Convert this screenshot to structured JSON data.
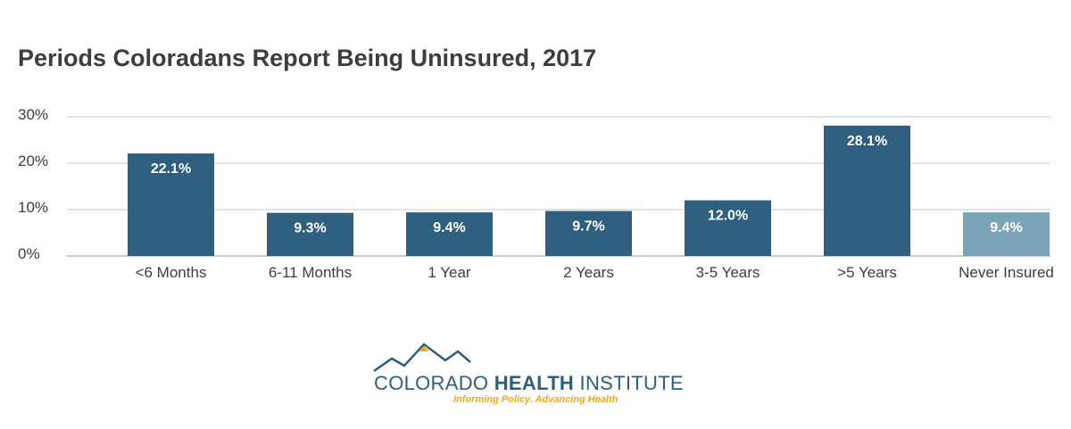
{
  "chart_data": {
    "type": "bar",
    "title": "Periods Coloradans Report Being Uninsured, 2017",
    "categories": [
      "<6 Months",
      "6-11 Months",
      "1 Year",
      "2 Years",
      "3-5 Years",
      ">5 Years",
      "Never Insured"
    ],
    "values": [
      22.1,
      9.3,
      9.4,
      9.7,
      12.0,
      28.1,
      9.4
    ],
    "data_labels": [
      "22.1%",
      "9.3%",
      "9.4%",
      "9.7%",
      "12.0%",
      "28.1%",
      "9.4%"
    ],
    "ylim": [
      0,
      30
    ],
    "yticks": [
      0,
      10,
      20,
      30
    ],
    "ytick_labels": [
      "0%",
      "10%",
      "20%",
      "30%"
    ],
    "grid": true,
    "colors": {
      "bar": "#2e5f7f",
      "highlight_bar": "#7ba4b8",
      "highlight_index": 6,
      "grid": "#c8c8c8"
    }
  },
  "logo": {
    "name_part1": "COLORADO ",
    "name_part2": "HEALTH",
    "name_part3": " INSTITUTE",
    "tagline": "Informing Policy. Advancing Health",
    "colors": {
      "primary": "#2c5f7c",
      "accent": "#f0a81e"
    }
  }
}
